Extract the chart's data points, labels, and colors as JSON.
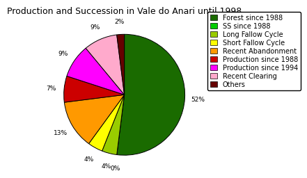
{
  "title": "Production and Succession in Vale do Anari until 1998",
  "labels": [
    "Forest since 1988",
    "SS since 1988",
    "Long Fallow Cycle",
    "Short Fallow Cycle",
    "Recent Abandonment",
    "Production since 1988",
    "Production since 1994",
    "Recent Clearing",
    "Others"
  ],
  "values": [
    52,
    0,
    4,
    4,
    13,
    7,
    9,
    9,
    2
  ],
  "colors": [
    "#1a6b00",
    "#00cc00",
    "#99cc00",
    "#ffff00",
    "#ff9900",
    "#cc0000",
    "#ff00ff",
    "#ffaacc",
    "#660000"
  ],
  "pct_labels": [
    "52%",
    "0%",
    "4%",
    "4%",
    "13%",
    "7%",
    "9%",
    "9%",
    "2%"
  ],
  "title_fontsize": 9,
  "legend_fontsize": 7
}
